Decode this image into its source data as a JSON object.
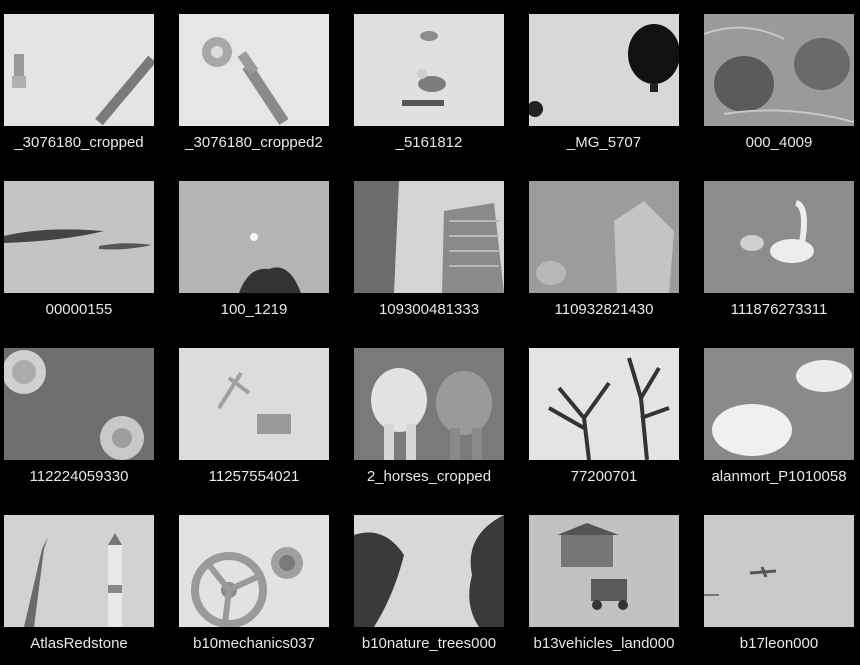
{
  "gallery": {
    "items": [
      {
        "caption": "_3076180_cropped",
        "icon": "screws-photo"
      },
      {
        "caption": "_3076180_cropped2",
        "icon": "screw-bolt-photo"
      },
      {
        "caption": "_5161812",
        "icon": "seagulls-photo"
      },
      {
        "caption": "_MG_5707",
        "icon": "hot-air-balloon-photo"
      },
      {
        "caption": "000_4009",
        "icon": "pine-cones-photo"
      },
      {
        "caption": "00000155",
        "icon": "clouds-sky-photo"
      },
      {
        "caption": "100_1219",
        "icon": "moon-tree-photo"
      },
      {
        "caption": "109300481333",
        "icon": "skyscrapers-photo"
      },
      {
        "caption": "110932821430",
        "icon": "rocks-water-photo"
      },
      {
        "caption": "111876273311",
        "icon": "swans-photo"
      },
      {
        "caption": "112224059330",
        "icon": "mushrooms-grass-photo"
      },
      {
        "caption": "11257554021",
        "icon": "sand-toys-photo"
      },
      {
        "caption": "2_horses_cropped",
        "icon": "two-horses-photo"
      },
      {
        "caption": "77200701",
        "icon": "dead-trees-photo"
      },
      {
        "caption": "alanmort_P1010058",
        "icon": "swans-resting-photo"
      },
      {
        "caption": "AtlasRedstone",
        "icon": "rockets-photo"
      },
      {
        "caption": "b10mechanics037",
        "icon": "valve-wheel-photo"
      },
      {
        "caption": "b10nature_trees000",
        "icon": "trees-sky-photo"
      },
      {
        "caption": "b13vehicles_land000",
        "icon": "truck-cabin-photo"
      },
      {
        "caption": "b17leon000",
        "icon": "airplane-sky-photo"
      }
    ]
  }
}
